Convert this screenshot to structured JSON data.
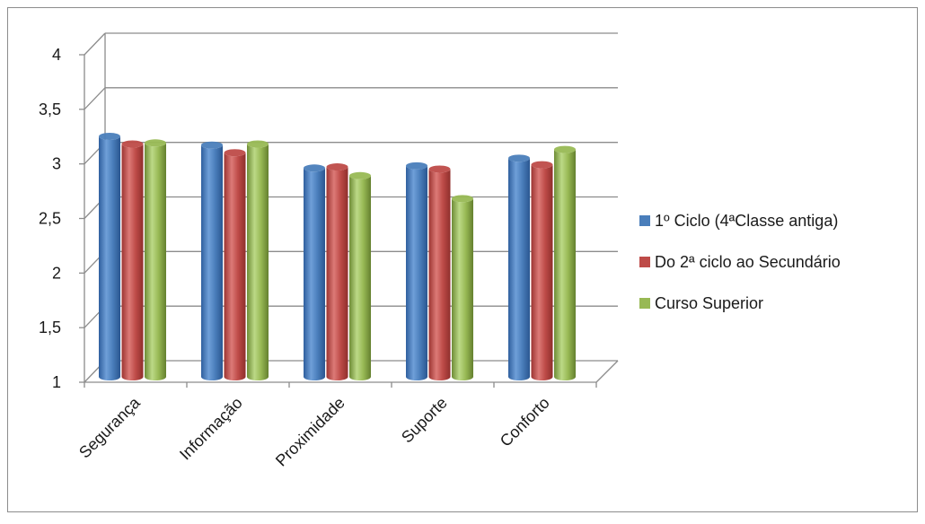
{
  "chart_data": {
    "type": "bar",
    "title": "",
    "xlabel": "",
    "ylabel": "",
    "ylim": [
      1,
      4
    ],
    "yticks": [
      1,
      1.5,
      2,
      2.5,
      3,
      3.5,
      4
    ],
    "ytick_labels": [
      "1",
      "1,5",
      "2",
      "2,5",
      "3",
      "3,5",
      "4"
    ],
    "grid": true,
    "legend_position": "right",
    "categories": [
      "Segurança",
      "Informação",
      "Proximidade",
      "Suporte",
      "Conforto"
    ],
    "series": [
      {
        "name": "1º Ciclo (4ªClasse antiga)",
        "color": "#4a7ebb",
        "values": [
          3.17,
          3.09,
          2.88,
          2.9,
          2.97
        ]
      },
      {
        "name": "Do 2ª ciclo ao Secundário",
        "color": "#be4b48",
        "values": [
          3.1,
          3.02,
          2.89,
          2.87,
          2.91
        ]
      },
      {
        "name": "Curso Superior",
        "color": "#98b954",
        "values": [
          3.11,
          3.1,
          2.81,
          2.6,
          3.05
        ]
      }
    ]
  }
}
